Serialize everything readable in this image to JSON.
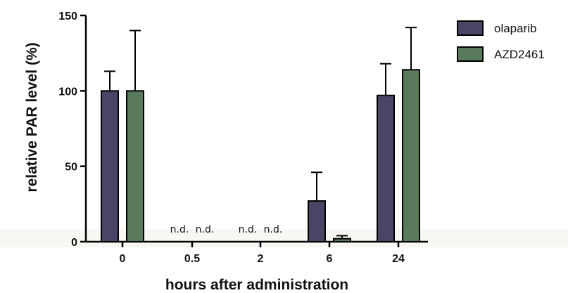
{
  "chart_data": {
    "type": "bar",
    "xlabel": "hours after administration",
    "ylabel": "relative PAR level (%)",
    "ylim": [
      0,
      150
    ],
    "yticks": [
      0,
      50,
      100,
      150
    ],
    "categories": [
      "0",
      "0.5",
      "2",
      "6",
      "24"
    ],
    "series": [
      {
        "name": "olaparib",
        "color": "#4a4565",
        "values": [
          100,
          null,
          null,
          27,
          97
        ],
        "errors": [
          13,
          null,
          null,
          19,
          21
        ],
        "labels": [
          null,
          "n.d.",
          "n.d.",
          null,
          null
        ]
      },
      {
        "name": "AZD2461",
        "color": "#5a7a5c",
        "values": [
          100,
          null,
          null,
          2,
          114
        ],
        "errors": [
          40,
          null,
          null,
          2,
          28
        ],
        "labels": [
          null,
          "n.d.",
          "n.d.",
          null,
          null
        ]
      }
    ],
    "legend": "top-right",
    "grid": false
  }
}
